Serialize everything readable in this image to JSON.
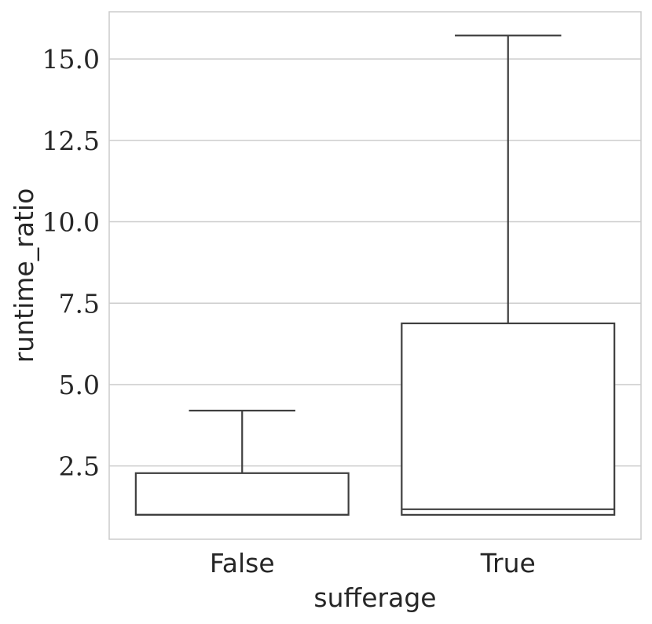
{
  "chart_data": {
    "type": "boxplot",
    "xlabel": "sufferage",
    "ylabel": "runtime_ratio",
    "categories": [
      "False",
      "True"
    ],
    "ylim": [
      0.25,
      16.45
    ],
    "yticks": [
      2.5,
      5.0,
      7.5,
      10.0,
      12.5,
      15.0
    ],
    "ytick_labels": [
      "2.5",
      "5.0",
      "7.5",
      "10.0",
      "12.5",
      "15.0"
    ],
    "grid": "horizontal",
    "boxes": [
      {
        "category": "False",
        "whisker_low": 1.0,
        "q1": 1.0,
        "median": 1.0,
        "q3": 2.28,
        "whisker_high": 4.2
      },
      {
        "category": "True",
        "whisker_low": 1.0,
        "q1": 1.0,
        "median": 1.17,
        "q3": 6.88,
        "whisker_high": 15.72
      }
    ]
  }
}
